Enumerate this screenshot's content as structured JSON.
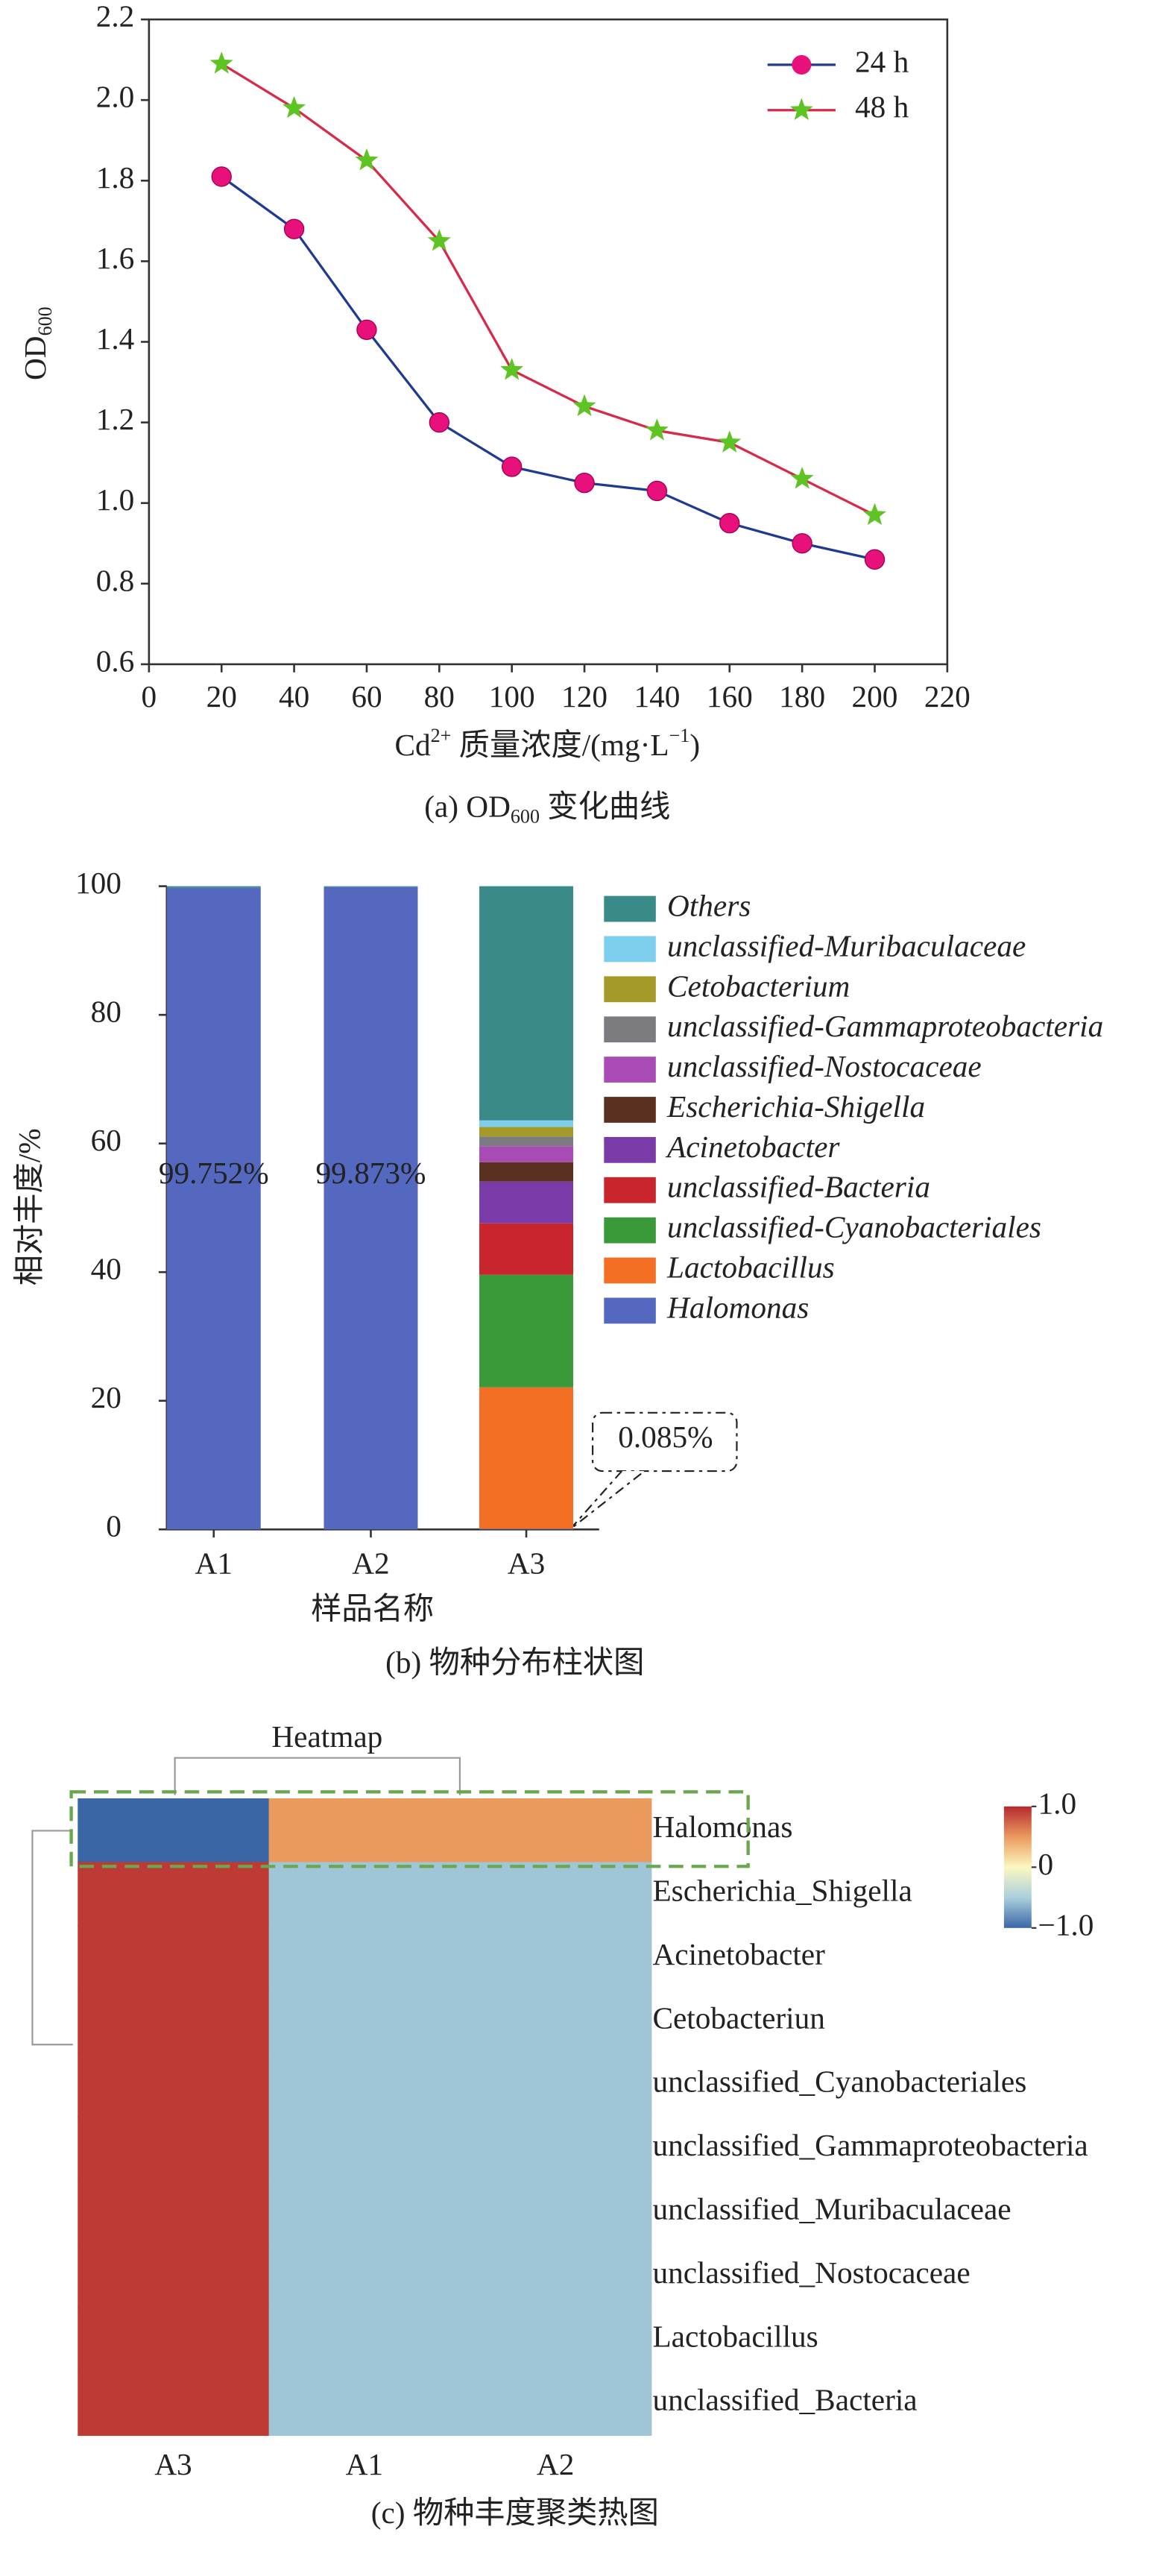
{
  "chart_data": [
    {
      "type": "line",
      "caption": [
        {
          "text": "(a) OD"
        },
        {
          "text": "600",
          "script": "sub"
        },
        {
          "text": " 变化曲线"
        }
      ],
      "ylabel": [
        {
          "text": "OD"
        },
        {
          "text": "600",
          "script": "sub"
        }
      ],
      "xlabel": [
        {
          "text": "Cd"
        },
        {
          "text": "2+",
          "script": "sup"
        },
        {
          "text": " 质量浓度/(mg·L"
        },
        {
          "text": "−1",
          "script": "sup"
        },
        {
          "text": ")"
        }
      ],
      "x": [
        20,
        40,
        60,
        80,
        100,
        120,
        140,
        160,
        180,
        200
      ],
      "series": [
        {
          "name": "24 h",
          "color": "#1f3a93",
          "marker": "circle",
          "marker_color": "#e8107a",
          "values": [
            1.81,
            1.68,
            1.43,
            1.2,
            1.09,
            1.05,
            1.03,
            0.95,
            0.9,
            0.86
          ]
        },
        {
          "name": "48 h",
          "color": "#d62a48",
          "marker": "star",
          "marker_color": "#5ec424",
          "values": [
            2.09,
            1.98,
            1.85,
            1.65,
            1.33,
            1.24,
            1.18,
            1.15,
            1.06,
            0.97
          ]
        }
      ],
      "xlim": [
        0,
        220
      ],
      "xticks": [
        0,
        20,
        40,
        60,
        80,
        100,
        120,
        140,
        160,
        180,
        200,
        220
      ],
      "ylim": [
        0.6,
        2.2
      ],
      "yticks": [
        0.6,
        0.8,
        {
          "value": 1,
          "label": "1.0"
        },
        1.2,
        1.4,
        1.6,
        1.8,
        {
          "value": 2,
          "label": "2.0"
        },
        2.2
      ],
      "legend": "top-right"
    },
    {
      "type": "stacked-bar",
      "caption": "(b) 物种分布柱状图",
      "ylabel": "相对丰度/%",
      "xlabel": "样品名称",
      "categories": [
        "A1",
        "A2",
        "A3"
      ],
      "series": [
        {
          "name": "Halomonas",
          "color": "#5468c0",
          "values": [
            99.752,
            99.873,
            0.085
          ],
          "value_labels": [
            "99.752%",
            "99.873%",
            "0.085%"
          ]
        },
        {
          "name": "Lactobacillus",
          "color": "#f26f24",
          "values": [
            0,
            0,
            22
          ]
        },
        {
          "name": "unclassified-Cyanobacteriales",
          "color": "#3a9a3a",
          "values": [
            0,
            0,
            17.5
          ]
        },
        {
          "name": "unclassified-Bacteria",
          "color": "#c8262c",
          "values": [
            0,
            0,
            8
          ]
        },
        {
          "name": "Acinetobacter",
          "color": "#7a3aa8",
          "values": [
            0,
            0,
            6.5
          ]
        },
        {
          "name": "Escherichia-Shigella",
          "color": "#5a3020",
          "values": [
            0,
            0,
            3
          ]
        },
        {
          "name": "unclassified-Nostocaceae",
          "color": "#a84bb5",
          "values": [
            0,
            0,
            2.5
          ]
        },
        {
          "name": "unclassified-Gammaproteobacteria",
          "color": "#7b7b80",
          "values": [
            0,
            0,
            1.5
          ]
        },
        {
          "name": "Cetobacterium",
          "color": "#a39a2a",
          "values": [
            0,
            0,
            1.5
          ]
        },
        {
          "name": "unclassified-Muribaculaceae",
          "color": "#7ecfee",
          "values": [
            0,
            0,
            1
          ]
        },
        {
          "name": "Others",
          "color": "#3a8a8a",
          "values": [
            0.248,
            0.127,
            36.415
          ]
        }
      ],
      "ylim": [
        0,
        100
      ],
      "yticks": [
        0,
        20,
        40,
        60,
        80,
        100
      ],
      "label_color": "#e03030"
    },
    {
      "type": "heatmap",
      "title": "Heatmap",
      "caption": "(c) 物种丰度聚类热图",
      "columns": [
        "A3",
        "A1",
        "A2"
      ],
      "rows": [
        "Halomonas",
        "Escherichia_Shigella",
        "Acinetobacter",
        "Cetobacteriun",
        "unclassified_Cyanobacteriales",
        "unclassified_Gammaproteobacteria",
        "unclassified_Muribaculaceae",
        "unclassified_Nostocaceae",
        "Lactobacillus",
        "unclassified_Bacteria"
      ],
      "values": [
        [
          -1,
          0.5,
          0.5
        ],
        [
          0.93,
          -0.55,
          -0.55
        ],
        [
          0.93,
          -0.55,
          -0.55
        ],
        [
          0.93,
          -0.55,
          -0.55
        ],
        [
          0.93,
          -0.55,
          -0.55
        ],
        [
          0.93,
          -0.55,
          -0.55
        ],
        [
          0.93,
          -0.55,
          -0.55
        ],
        [
          0.93,
          -0.55,
          -0.55
        ],
        [
          0.93,
          -0.55,
          -0.55
        ],
        [
          0.93,
          -0.55,
          -0.55
        ]
      ],
      "colormap": [
        "#3b66a6",
        "#abd0dc",
        "#fbf8c0",
        "#eb9a5e",
        "#b52a2e"
      ],
      "clim": [
        -1,
        1
      ],
      "cticks": [
        {
          "value": 1,
          "label": "1.0"
        },
        0,
        {
          "value": -1,
          "label": "−1.0"
        }
      ]
    }
  ]
}
